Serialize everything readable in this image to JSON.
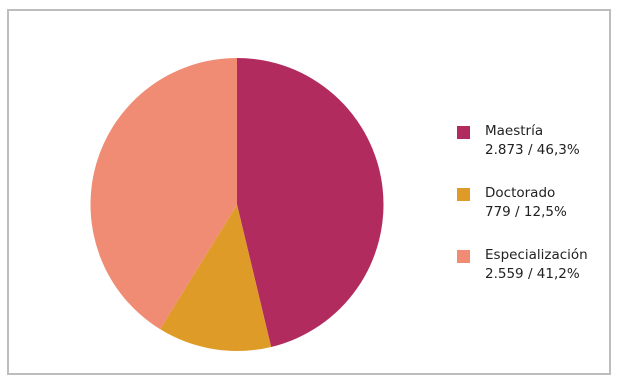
{
  "chart_data": {
    "type": "pie",
    "title": "",
    "slices": [
      {
        "label": "Maestría",
        "value": 2873,
        "display": "2.873 / 46,3%",
        "color": "#B22B5E"
      },
      {
        "label": "Doctorado",
        "value": 779,
        "display": "779 / 12,5%",
        "color": "#DF9B28"
      },
      {
        "label": "Especialización",
        "value": 2559,
        "display": "2.559 / 41,2%",
        "color": "#EF8C73"
      }
    ],
    "legend_position": "right"
  }
}
